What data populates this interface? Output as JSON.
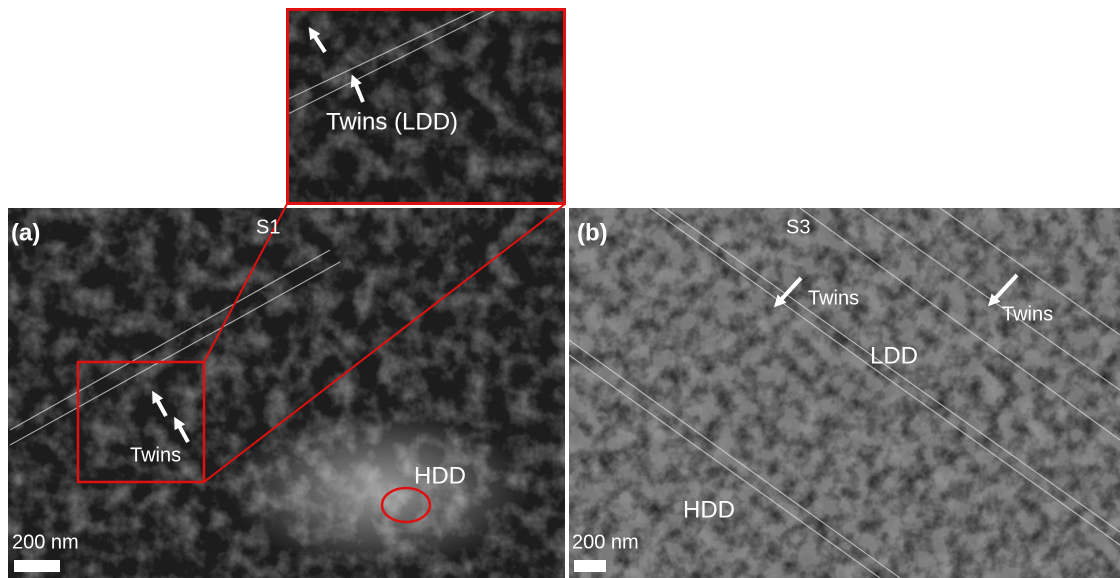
{
  "panels": [
    {
      "label": "(a)",
      "sample": "S1",
      "annotations": [
        "Twins",
        "HDD"
      ],
      "scale_bar": "200 nm"
    },
    {
      "label": "(b)",
      "sample": "S3",
      "annotations": [
        "Twins",
        "Twins",
        "LDD",
        "HDD"
      ],
      "scale_bar": "200 nm"
    }
  ],
  "inset": {
    "annotation": "Twins (LDD)"
  }
}
